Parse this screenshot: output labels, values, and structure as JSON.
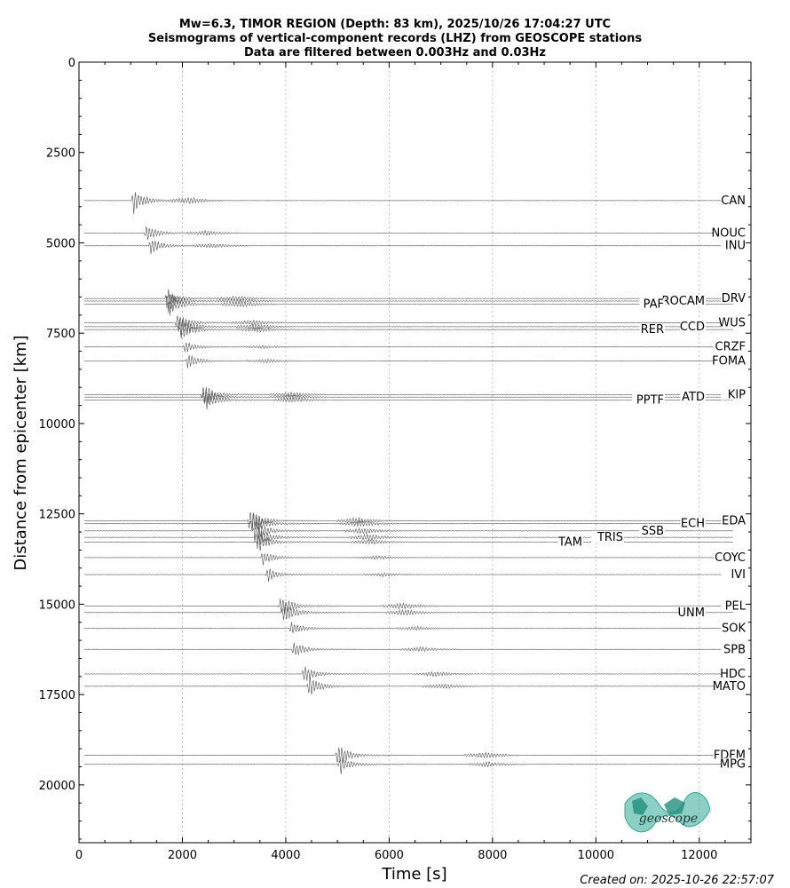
{
  "chart_data": {
    "type": "line",
    "title_lines": [
      "Mw=6.3, TIMOR REGION (Depth: 83 km), 2025/10/26 17:04:27 UTC",
      "Seismograms of vertical-component records (LHZ) from GEOSCOPE stations",
      "Data are filtered between 0.003Hz and 0.03Hz"
    ],
    "xlabel": "Time [s]",
    "ylabel": "Distance from epicenter [km]",
    "xlim": [
      0,
      13000
    ],
    "ylim": [
      21600,
      0
    ],
    "xticks": [
      0,
      2000,
      4000,
      6000,
      8000,
      10000,
      12000
    ],
    "xtick_labels": [
      "0",
      "2000",
      "4000",
      "6000",
      "8000",
      "10000",
      "12000"
    ],
    "yticks": [
      0,
      2500,
      5000,
      7500,
      10000,
      12500,
      15000,
      17500,
      20000
    ],
    "ytick_labels": [
      "0",
      "2500",
      "5000",
      "7500",
      "10000",
      "12500",
      "15000",
      "17500",
      "20000"
    ],
    "grid": "vertical dotted",
    "stations": [
      {
        "name": "CAN",
        "distance": 3830,
        "arrival": 1050,
        "amp": 1.0
      },
      {
        "name": "NOUC",
        "distance": 4730,
        "arrival": 1300,
        "amp": 0.7
      },
      {
        "name": "INU",
        "distance": 5080,
        "arrival": 1380,
        "amp": 0.7
      },
      {
        "name": "DRV",
        "distance": 6540,
        "arrival": 1700,
        "amp": 0.8
      },
      {
        "name": "ROCAM",
        "distance": 6610,
        "arrival": 1720,
        "amp": 0.9
      },
      {
        "name": "PAF",
        "distance": 6700,
        "arrival": 1760,
        "amp": 0.9
      },
      {
        "name": "WUS",
        "distance": 7210,
        "arrival": 1900,
        "amp": 0.8
      },
      {
        "name": "CCD",
        "distance": 7320,
        "arrival": 1950,
        "amp": 0.9
      },
      {
        "name": "RER",
        "distance": 7400,
        "arrival": 1980,
        "amp": 0.9
      },
      {
        "name": "CRZF",
        "distance": 7880,
        "arrival": 2050,
        "amp": 0.5
      },
      {
        "name": "FOMA",
        "distance": 8270,
        "arrival": 2100,
        "amp": 0.6
      },
      {
        "name": "KIP",
        "distance": 9200,
        "arrival": 2400,
        "amp": 0.9
      },
      {
        "name": "ATD",
        "distance": 9270,
        "arrival": 2420,
        "amp": 0.8
      },
      {
        "name": "PPTF",
        "distance": 9350,
        "arrival": 2450,
        "amp": 0.8
      },
      {
        "name": "EDA",
        "distance": 12690,
        "arrival": 3300,
        "amp": 1.0
      },
      {
        "name": "ECH",
        "distance": 12770,
        "arrival": 3350,
        "amp": 1.0
      },
      {
        "name": "SSB",
        "distance": 12970,
        "arrival": 3400,
        "amp": 1.0
      },
      {
        "name": "TRIS",
        "distance": 13150,
        "arrival": 3450,
        "amp": 1.0
      },
      {
        "name": "TAM",
        "distance": 13280,
        "arrival": 3480,
        "amp": 0.8
      },
      {
        "name": "COYC",
        "distance": 13710,
        "arrival": 3550,
        "amp": 0.6
      },
      {
        "name": "IVI",
        "distance": 14180,
        "arrival": 3650,
        "amp": 0.6
      },
      {
        "name": "PEL",
        "distance": 15050,
        "arrival": 3900,
        "amp": 1.0
      },
      {
        "name": "UNM",
        "distance": 15230,
        "arrival": 3950,
        "amp": 1.0
      },
      {
        "name": "SOK",
        "distance": 15670,
        "arrival": 4100,
        "amp": 0.6
      },
      {
        "name": "SPB",
        "distance": 16250,
        "arrival": 4150,
        "amp": 0.7
      },
      {
        "name": "HDC",
        "distance": 16930,
        "arrival": 4350,
        "amp": 0.8
      },
      {
        "name": "MATO",
        "distance": 17270,
        "arrival": 4450,
        "amp": 0.9
      },
      {
        "name": "FDFM",
        "distance": 19180,
        "arrival": 5000,
        "amp": 1.0
      },
      {
        "name": "MPG",
        "distance": 19430,
        "arrival": 5050,
        "amp": 0.8
      }
    ]
  },
  "logo": {
    "text": "geoscope",
    "color": "#2ea894"
  },
  "footer": {
    "created": "Created on: 2025-10-26 22:57:07"
  }
}
